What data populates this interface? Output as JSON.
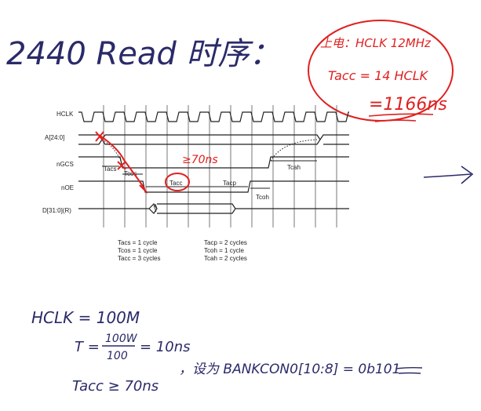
{
  "title": "2440 Read 时序：",
  "note": {
    "line1": "上电：HCLK 12MHz",
    "line2": "Tacc = 14 HCLK",
    "line3": "=1166ns"
  },
  "annotation_70ns": "≥70ns",
  "signals": [
    "HCLK",
    "A[24:0]",
    "nGCS",
    "nOE",
    "D[31:0](R)"
  ],
  "interval_labels": {
    "tacs": "Tacs",
    "tcos": "Tcos",
    "tacc": "Tacc",
    "tacp": "Tacp",
    "tcoh": "Tcoh",
    "tcah": "Tcah"
  },
  "timing_left": [
    "Tacs = 1 cycle",
    "Tcos = 1 cycle",
    "Tacc = 3 cycles"
  ],
  "timing_right": [
    "Tacp = 2 cycles",
    "Tcoh = 1 cycle",
    "Tcah = 2 cycles"
  ],
  "bottom": {
    "line1": "HCLK = 100M",
    "t_prefix": "T =",
    "t_num": "100W",
    "t_den": "100",
    "t_result": "= 10ns",
    "line3a": "Tacc ≥ 70ns",
    "line3b": "，设为 BANKCON0[10:8] = 0b101"
  },
  "colors": {
    "ink": "#2a2a6a",
    "red": "#e02020",
    "wave": "#222222",
    "grid": "#555555"
  }
}
